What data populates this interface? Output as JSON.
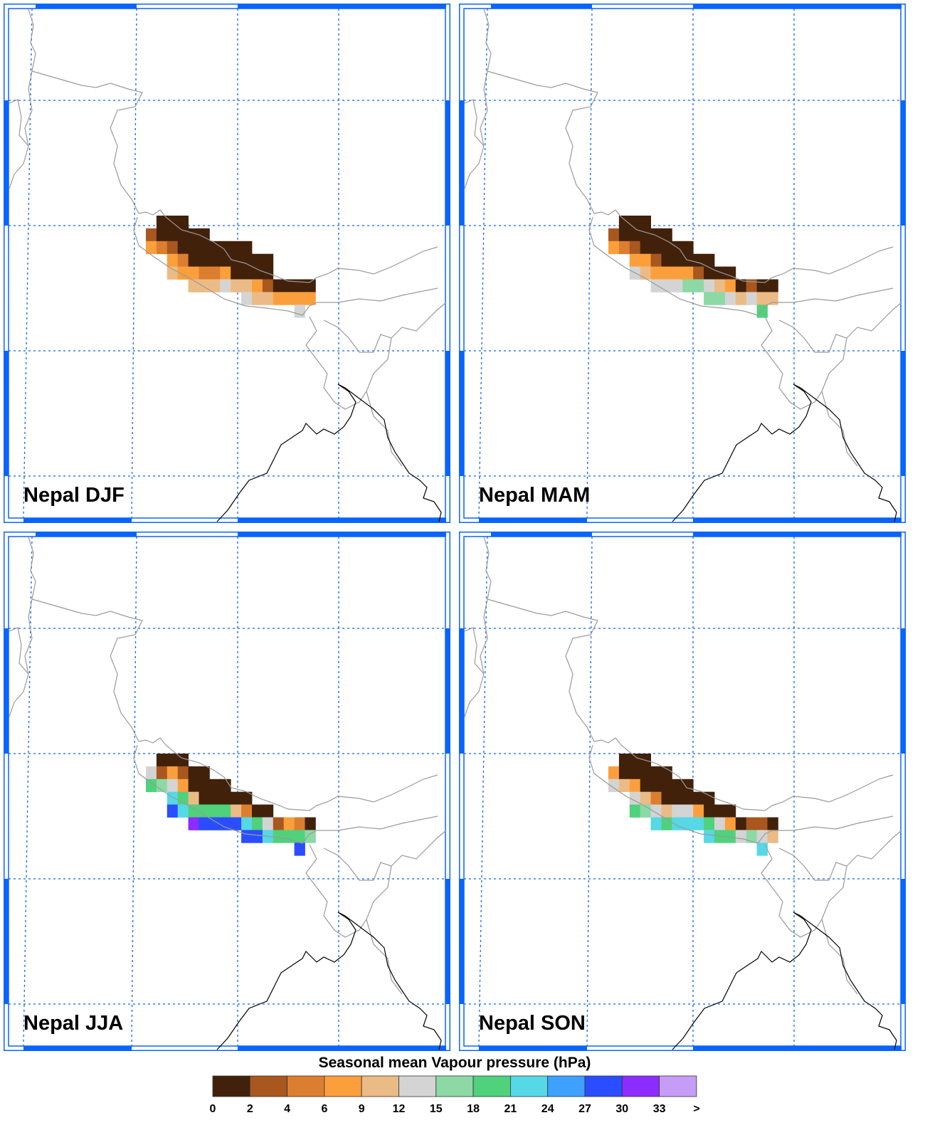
{
  "legend": {
    "title": "Seasonal mean Vapour pressure (hPa)",
    "labels": [
      "0",
      "2",
      "4",
      "6",
      "9",
      "12",
      "15",
      "18",
      "21",
      "24",
      "27",
      "30",
      "33",
      ">"
    ],
    "colors": [
      "#42210b",
      "#a8571e",
      "#dc7e2f",
      "#fb9f3c",
      "#ebbb86",
      "#d4d4d4",
      "#8cd9a6",
      "#50d17c",
      "#56d8e6",
      "#3ea0ff",
      "#2a4dff",
      "#8c2cff",
      "#c79cf6"
    ]
  },
  "chart_data": {
    "type": "heatmap",
    "title": "Seasonal mean Vapour pressure (hPa)",
    "class_bounds": [
      0,
      2,
      4,
      6,
      9,
      12,
      15,
      18,
      21,
      24,
      27,
      30,
      33
    ],
    "note": "cells give colour-class index (0 = 0-2 hPa ... 12 = >33 hPa), -1 = no data; rows north to south, 16 columns west to east",
    "panels": [
      {
        "title": "Nepal DJF",
        "cells": [
          [
            -1,
            0,
            0,
            0,
            -1,
            -1,
            -1,
            -1,
            -1,
            -1,
            -1,
            -1,
            -1,
            -1,
            -1,
            -1
          ],
          [
            1,
            0,
            0,
            0,
            0,
            0,
            -1,
            -1,
            -1,
            -1,
            -1,
            -1,
            -1,
            -1,
            -1,
            -1
          ],
          [
            3,
            2,
            1,
            0,
            0,
            0,
            0,
            0,
            0,
            0,
            -1,
            -1,
            -1,
            -1,
            -1,
            -1
          ],
          [
            -1,
            -1,
            3,
            2,
            0,
            0,
            0,
            0,
            0,
            0,
            0,
            0,
            -1,
            -1,
            -1,
            -1
          ],
          [
            -1,
            -1,
            4,
            3,
            3,
            2,
            2,
            3,
            0,
            0,
            0,
            0,
            -1,
            -1,
            -1,
            -1
          ],
          [
            -1,
            -1,
            -1,
            -1,
            4,
            4,
            4,
            5,
            4,
            4,
            3,
            1,
            0,
            0,
            0,
            0
          ],
          [
            -1,
            -1,
            -1,
            -1,
            -1,
            -1,
            -1,
            -1,
            -1,
            5,
            4,
            4,
            3,
            3,
            3,
            3
          ],
          [
            -1,
            -1,
            -1,
            -1,
            -1,
            -1,
            -1,
            -1,
            -1,
            -1,
            -1,
            -1,
            -1,
            -1,
            5,
            -1
          ]
        ]
      },
      {
        "title": "Nepal MAM",
        "cells": [
          [
            -1,
            0,
            0,
            0,
            -1,
            -1,
            -1,
            -1,
            -1,
            -1,
            -1,
            -1,
            -1,
            -1,
            -1,
            -1
          ],
          [
            1,
            0,
            0,
            0,
            0,
            0,
            -1,
            -1,
            -1,
            -1,
            -1,
            -1,
            -1,
            -1,
            -1,
            -1
          ],
          [
            3,
            2,
            1,
            0,
            0,
            0,
            0,
            0,
            -1,
            -1,
            -1,
            -1,
            -1,
            -1,
            -1,
            -1
          ],
          [
            -1,
            -1,
            3,
            3,
            1,
            0,
            0,
            0,
            0,
            0,
            -1,
            -1,
            -1,
            -1,
            -1,
            -1
          ],
          [
            -1,
            -1,
            5,
            4,
            3,
            3,
            3,
            3,
            1,
            0,
            0,
            0,
            -1,
            -1,
            -1,
            -1
          ],
          [
            -1,
            -1,
            -1,
            -1,
            5,
            5,
            5,
            6,
            6,
            5,
            4,
            3,
            0,
            1,
            0,
            0
          ],
          [
            -1,
            -1,
            -1,
            -1,
            -1,
            -1,
            -1,
            -1,
            -1,
            6,
            6,
            5,
            4,
            5,
            4,
            4
          ],
          [
            -1,
            -1,
            -1,
            -1,
            -1,
            -1,
            -1,
            -1,
            -1,
            -1,
            -1,
            -1,
            -1,
            -1,
            7,
            -1
          ]
        ]
      },
      {
        "title": "Nepal JJA",
        "cells": [
          [
            -1,
            0,
            0,
            0,
            -1,
            -1,
            -1,
            -1,
            -1,
            -1,
            -1,
            -1,
            -1,
            -1,
            -1,
            -1
          ],
          [
            5,
            1,
            3,
            1,
            0,
            0,
            -1,
            -1,
            -1,
            -1,
            -1,
            -1,
            -1,
            -1,
            -1,
            -1
          ],
          [
            7,
            6,
            5,
            3,
            0,
            0,
            0,
            0,
            -1,
            -1,
            -1,
            -1,
            -1,
            -1,
            -1,
            -1
          ],
          [
            -1,
            -1,
            8,
            7,
            4,
            0,
            0,
            0,
            0,
            0,
            -1,
            -1,
            -1,
            -1,
            -1,
            -1
          ],
          [
            -1,
            -1,
            10,
            8,
            7,
            7,
            7,
            7,
            4,
            2,
            0,
            0,
            -1,
            -1,
            -1,
            -1
          ],
          [
            -1,
            -1,
            -1,
            -1,
            11,
            10,
            10,
            10,
            10,
            8,
            7,
            5,
            1,
            3,
            2,
            0
          ],
          [
            -1,
            -1,
            -1,
            -1,
            -1,
            -1,
            -1,
            -1,
            -1,
            10,
            10,
            8,
            7,
            7,
            7,
            6
          ],
          [
            -1,
            -1,
            -1,
            -1,
            -1,
            -1,
            -1,
            -1,
            -1,
            -1,
            -1,
            -1,
            -1,
            -1,
            10,
            -1
          ]
        ]
      },
      {
        "title": "Nepal SON",
        "cells": [
          [
            -1,
            0,
            0,
            0,
            -1,
            -1,
            -1,
            -1,
            -1,
            -1,
            -1,
            -1,
            -1,
            -1,
            -1,
            -1
          ],
          [
            3,
            0,
            0,
            0,
            0,
            0,
            -1,
            -1,
            -1,
            -1,
            -1,
            -1,
            -1,
            -1,
            -1,
            -1
          ],
          [
            5,
            4,
            3,
            0,
            0,
            0,
            0,
            0,
            -1,
            -1,
            -1,
            -1,
            -1,
            -1,
            -1,
            -1
          ],
          [
            -1,
            -1,
            5,
            4,
            2,
            0,
            0,
            0,
            0,
            0,
            -1,
            -1,
            -1,
            -1,
            -1,
            -1
          ],
          [
            -1,
            -1,
            7,
            6,
            5,
            4,
            5,
            5,
            3,
            0,
            0,
            0,
            -1,
            -1,
            -1,
            -1
          ],
          [
            -1,
            -1,
            -1,
            -1,
            8,
            7,
            8,
            8,
            8,
            7,
            5,
            3,
            0,
            1,
            1,
            0
          ],
          [
            -1,
            -1,
            -1,
            -1,
            -1,
            -1,
            -1,
            -1,
            -1,
            8,
            7,
            7,
            5,
            6,
            5,
            4
          ],
          [
            -1,
            -1,
            -1,
            -1,
            -1,
            -1,
            -1,
            -1,
            -1,
            -1,
            -1,
            -1,
            -1,
            -1,
            8,
            -1
          ]
        ]
      }
    ]
  }
}
